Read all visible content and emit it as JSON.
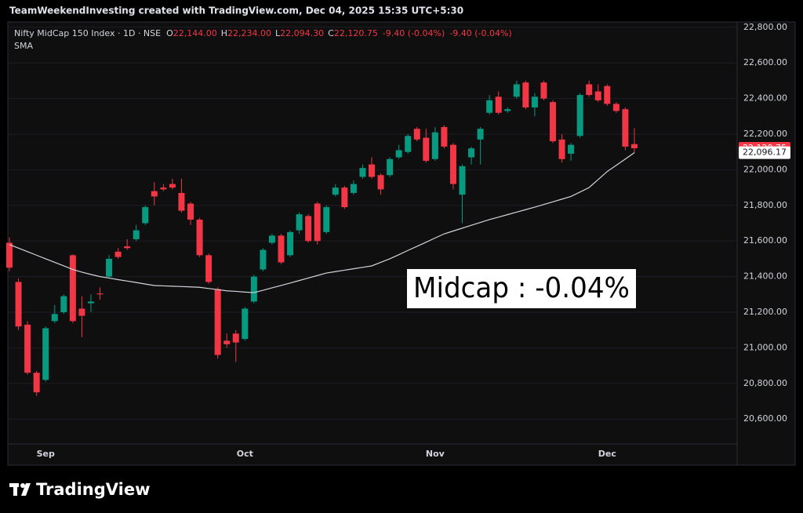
{
  "watermark": "TeamWeekendInvesting created with TradingView.com, Dec 04, 2025 15:35 UTC+5:30",
  "logo": "TradingView",
  "chart_data": {
    "type": "candlestick",
    "name": "Nifty MidCap 150 Index · 1D · NSE",
    "ohlc_legend": [
      {
        "key": "O",
        "value": "22,144.00"
      },
      {
        "key": "H",
        "value": "22,234.00"
      },
      {
        "key": "L",
        "value": "22,094.30"
      },
      {
        "key": "C",
        "value": "22,120.75"
      }
    ],
    "changes": [
      "-9.40 (-0.04%)",
      "-9.40 (-0.04%)"
    ],
    "annotation": "Midcap : -0.04%",
    "last_price_label": "22,120.75",
    "sma_last_label": "22,096.17",
    "up_color": "#089981",
    "down_color": "#f23645",
    "categories": [
      null,
      null,
      null,
      null,
      "Sep",
      null,
      null,
      null,
      null,
      null,
      null,
      null,
      null,
      null,
      null,
      null,
      null,
      null,
      null,
      null,
      null,
      null,
      null,
      null,
      null,
      null,
      "Oct",
      null,
      null,
      null,
      null,
      null,
      null,
      null,
      null,
      null,
      null,
      null,
      null,
      null,
      null,
      null,
      null,
      null,
      null,
      null,
      null,
      "Nov",
      null,
      null,
      null,
      null,
      null,
      null,
      null,
      null,
      null,
      null,
      null,
      null,
      null,
      null,
      null,
      null,
      null,
      null,
      "Dec",
      null,
      null,
      null
    ],
    "open": [
      21590,
      21370,
      21130,
      20860,
      20820,
      21150,
      21200,
      21520,
      21220,
      21250,
      21305,
      21400,
      21540,
      21570,
      21610,
      21700,
      21880,
      21900,
      21920,
      21870,
      21810,
      21720,
      21520,
      21330,
      21040,
      21080,
      21050,
      21260,
      21440,
      21590,
      21630,
      21520,
      21660,
      21740,
      21810,
      21650,
      21860,
      21900,
      21870,
      21960,
      22030,
      21970,
      21970,
      22070,
      22100,
      22230,
      22180,
      22060,
      22240,
      22140,
      21860,
      22070,
      22170,
      22320,
      22410,
      22330,
      22410,
      22490,
      22350,
      22490,
      22380,
      22170,
      22090,
      22190,
      22480,
      22440,
      22470,
      22370,
      22340,
      22144
    ],
    "high": [
      21620,
      21390,
      21150,
      20870,
      21120,
      21240,
      21300,
      21525,
      21290,
      21300,
      21340,
      21520,
      21560,
      21610,
      21690,
      21800,
      21930,
      21920,
      21950,
      21950,
      21820,
      21730,
      21530,
      21340,
      21080,
      21100,
      21230,
      21410,
      21560,
      21640,
      21640,
      21660,
      21760,
      21750,
      21820,
      21800,
      21920,
      21910,
      21940,
      22030,
      22070,
      21980,
      22070,
      22140,
      22200,
      22240,
      22230,
      22240,
      22250,
      22150,
      22030,
      22130,
      22240,
      22420,
      22440,
      22350,
      22500,
      22500,
      22430,
      22500,
      22390,
      22200,
      22150,
      22430,
      22500,
      22480,
      22480,
      22380,
      22350,
      22234
    ],
    "low": [
      21430,
      21100,
      20850,
      20730,
      20810,
      21140,
      21190,
      21140,
      21060,
      21200,
      21270,
      21390,
      21500,
      21550,
      21600,
      21690,
      21800,
      21880,
      21890,
      21760,
      21690,
      21510,
      21360,
      20940,
      21000,
      20920,
      21040,
      21250,
      21430,
      21580,
      21470,
      21510,
      21640,
      21590,
      21580,
      21640,
      21850,
      21780,
      21860,
      21950,
      21950,
      21860,
      21960,
      22060,
      22090,
      22160,
      22040,
      22050,
      22120,
      21890,
      21700,
      22030,
      22030,
      22310,
      22310,
      22320,
      22400,
      22340,
      22300,
      22390,
      22150,
      22040,
      22050,
      22180,
      22410,
      22380,
      22360,
      22320,
      22110,
      22094.3
    ],
    "close": [
      21450,
      21120,
      20860,
      20750,
      21110,
      21190,
      21290,
      21150,
      21180,
      21260,
      21300,
      21500,
      21510,
      21560,
      21660,
      21790,
      21850,
      21890,
      21900,
      21770,
      21720,
      21520,
      21370,
      20960,
      21020,
      21030,
      21220,
      21400,
      21550,
      21630,
      21480,
      21650,
      21750,
      21600,
      21600,
      21790,
      21900,
      21790,
      21920,
      22010,
      21960,
      21890,
      22060,
      22110,
      22190,
      22170,
      22050,
      22210,
      22130,
      21920,
      22020,
      22120,
      22230,
      22390,
      22320,
      22340,
      22480,
      22350,
      22410,
      22400,
      22160,
      22060,
      22140,
      22420,
      22420,
      22390,
      22370,
      22330,
      22130,
      22120.75
    ],
    "sma": {
      "name": "SMA",
      "color": "#d1d4dc",
      "values": [
        21580,
        21560,
        21540,
        21520,
        21500,
        21480,
        21460,
        21440,
        21425,
        21412,
        21400,
        21392,
        21383,
        21375,
        21367,
        21358,
        21350,
        21348,
        21346,
        21344,
        21342,
        21340,
        21333,
        21327,
        21320,
        21317,
        21313,
        21310,
        21323,
        21337,
        21350,
        21364,
        21378,
        21392,
        21406,
        21420,
        21428,
        21436,
        21444,
        21452,
        21460,
        21480,
        21500,
        21523,
        21547,
        21570,
        21593,
        21617,
        21640,
        21656,
        21672,
        21688,
        21704,
        21720,
        21734,
        21748,
        21762,
        21776,
        21790,
        21805,
        21820,
        21835,
        21850,
        21875,
        21900,
        21945,
        21990,
        22025,
        22060,
        22096.17
      ]
    },
    "ylim": [
      20460,
      22830
    ],
    "yticks": [
      {
        "value": 20600,
        "label": "20,600.00"
      },
      {
        "value": 20800,
        "label": "20,800.00"
      },
      {
        "value": 21000,
        "label": "21,000.00"
      },
      {
        "value": 21200,
        "label": "21,200.00"
      },
      {
        "value": 21400,
        "label": "21,400.00"
      },
      {
        "value": 21600,
        "label": "21,600.00"
      },
      {
        "value": 21800,
        "label": "21,800.00"
      },
      {
        "value": 22000,
        "label": "22,000.00"
      },
      {
        "value": 22200,
        "label": "22,200.00"
      },
      {
        "value": 22400,
        "label": "22,400.00"
      },
      {
        "value": 22600,
        "label": "22,600.00"
      },
      {
        "value": 22800,
        "label": "22,800.00"
      }
    ]
  }
}
